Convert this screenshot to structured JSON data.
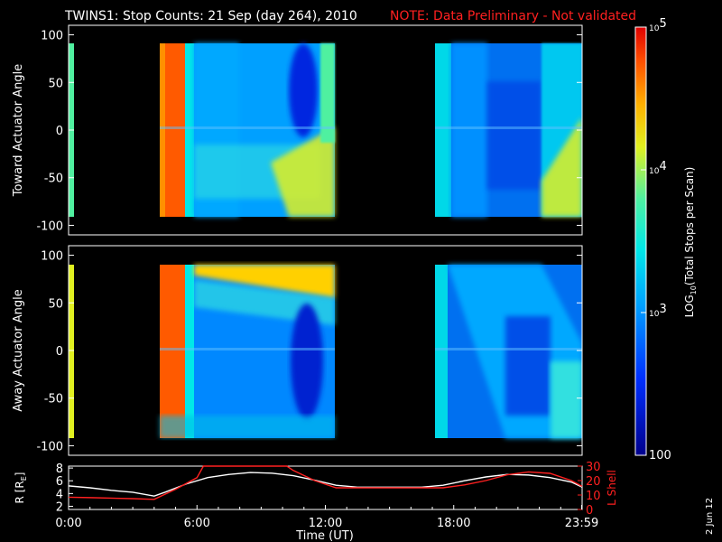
{
  "header": {
    "title": "TWINS1: Stop Counts: 21 Sep (day 264), 2010",
    "note": "NOTE: Data Preliminary - Not validated"
  },
  "footer_stamp": "2 Jun 12",
  "colors": {
    "background": "#000000",
    "note": "#ff2020",
    "r_line": "#ffffff",
    "lshell_line": "#ff2020"
  },
  "chart_data": [
    {
      "type": "heatmap",
      "panel": "toward",
      "ylabel": "Toward Actuator Angle",
      "ylim": [
        -110,
        110
      ],
      "yticks": [
        "100",
        "50",
        "0",
        "-50",
        "-100"
      ],
      "xlim_hours": [
        0,
        24
      ],
      "data_gaps_hours": [
        [
          0.5,
          4.0
        ],
        [
          12.5,
          17.3
        ]
      ],
      "colorscale": "log"
    },
    {
      "type": "heatmap",
      "panel": "away",
      "ylabel": "Away Actuator Angle",
      "ylim": [
        -110,
        110
      ],
      "yticks": [
        "100",
        "50",
        "0",
        "-50",
        "-100"
      ],
      "xlim_hours": [
        0,
        24
      ],
      "data_gaps_hours": [
        [
          0.5,
          4.0
        ],
        [
          12.5,
          17.3
        ]
      ],
      "colorscale": "log"
    },
    {
      "type": "line",
      "panel": "orbit",
      "xlabel": "Time (UT)",
      "xticks": [
        "0:00",
        "6:00",
        "12:00",
        "18:00",
        "23:59"
      ],
      "xtick_hours": [
        0,
        6,
        12,
        18,
        23.98
      ],
      "ylabel_left": "R [R",
      "ylabel_left_sub": "E",
      "ylabel_left_close": "]",
      "ylim_left": [
        1.5,
        8.3
      ],
      "yticks_left": [
        "8",
        "6",
        "4",
        "2"
      ],
      "ylabel_right": "L Shell",
      "ylim_right": [
        0,
        30
      ],
      "yticks_right": [
        "30",
        "20",
        "10",
        "0"
      ],
      "series": [
        {
          "name": "R",
          "axis": "left",
          "x": [
            0,
            1,
            2,
            3,
            4,
            4.5,
            5.5,
            6.5,
            7.5,
            8.5,
            9.5,
            10.5,
            11.5,
            12.5,
            13.5,
            14.5,
            15.5,
            16.5,
            17.5,
            18.5,
            19.5,
            20.5,
            21.5,
            22.5,
            23.5,
            24
          ],
          "y": [
            5.2,
            4.9,
            4.5,
            4.2,
            3.6,
            4.2,
            5.5,
            6.5,
            7.0,
            7.3,
            7.2,
            6.8,
            6.1,
            5.3,
            5.0,
            5.0,
            5.0,
            5.0,
            5.3,
            6.0,
            6.6,
            7.0,
            6.9,
            6.5,
            5.8,
            5.0
          ]
        },
        {
          "name": "L Shell",
          "axis": "right",
          "x": [
            0,
            1,
            3,
            4,
            5,
            6,
            6.3,
            10.2,
            10.5,
            11.5,
            12.5,
            13.5,
            15,
            16.5,
            17.5,
            18.5,
            19.5,
            20.5,
            21.5,
            22.5,
            23.5,
            24
          ],
          "y": [
            8.5,
            8.2,
            7.5,
            7.0,
            14,
            22,
            30,
            30,
            27,
            20,
            15,
            15,
            15,
            15,
            15,
            17,
            20,
            24,
            26,
            25,
            20,
            16
          ]
        }
      ]
    }
  ],
  "colorbar": {
    "label_main": "LOG",
    "label_sub": "10",
    "label_rest": "(Total Stops per Scan)",
    "ticks": [
      {
        "base": "10",
        "exp": "5",
        "value": 100000
      },
      {
        "base": "10",
        "exp": "4",
        "value": 10000
      },
      {
        "base": "10",
        "exp": "3",
        "value": 1000
      },
      {
        "base": "100",
        "exp": "",
        "value": 100
      }
    ],
    "range": [
      100,
      100000
    ]
  }
}
